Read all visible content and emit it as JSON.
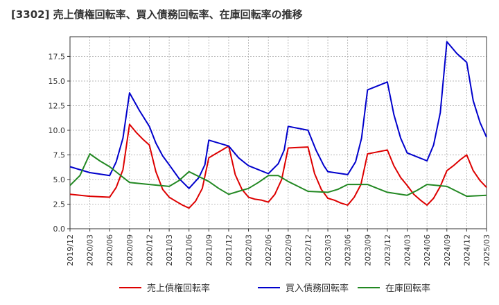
{
  "chart_data": {
    "type": "line",
    "title": "[3302]  売上債権回転率、買入債務回転率、在庫回転率の推移",
    "xlabel": "",
    "ylabel": "",
    "ylim": [
      0,
      19.5
    ],
    "yticks": [
      0.0,
      2.5,
      5.0,
      7.5,
      10.0,
      12.5,
      15.0,
      17.5
    ],
    "ytick_labels": [
      "0.0",
      "2.5",
      "5.0",
      "7.5",
      "10.0",
      "12.5",
      "15.0",
      "17.5"
    ],
    "xtick_labels": [
      "2019/12",
      "2020/03",
      "2020/06",
      "2020/09",
      "2020/12",
      "2021/03",
      "2021/06",
      "2021/09",
      "2021/12",
      "2022/03",
      "2022/06",
      "2022/09",
      "2022/12",
      "2023/03",
      "2023/06",
      "2023/09",
      "2023/12",
      "2024/03",
      "2024/06",
      "2024/09",
      "2024/12",
      "2025/03"
    ],
    "grid": true,
    "legend_position": "bottom",
    "series": [
      {
        "name": "売上債権回転率",
        "color": "#dd0000",
        "points": [
          [
            0,
            3.5
          ],
          [
            1,
            3.3
          ],
          [
            2,
            3.2
          ],
          [
            2.33,
            4.2
          ],
          [
            2.67,
            6.0
          ],
          [
            3,
            10.6
          ],
          [
            3.33,
            9.8
          ],
          [
            3.67,
            9.1
          ],
          [
            4,
            8.5
          ],
          [
            4.33,
            5.8
          ],
          [
            4.67,
            4.0
          ],
          [
            5,
            3.2
          ],
          [
            5.33,
            2.8
          ],
          [
            5.67,
            2.4
          ],
          [
            6,
            2.1
          ],
          [
            6.33,
            2.8
          ],
          [
            6.67,
            4.1
          ],
          [
            7,
            7.2
          ],
          [
            7.33,
            7.6
          ],
          [
            7.67,
            8.0
          ],
          [
            8,
            8.4
          ],
          [
            8.33,
            5.5
          ],
          [
            8.67,
            4.0
          ],
          [
            9,
            3.2
          ],
          [
            9.33,
            3.0
          ],
          [
            9.67,
            2.9
          ],
          [
            10,
            2.7
          ],
          [
            10.33,
            3.5
          ],
          [
            10.67,
            5.0
          ],
          [
            11,
            8.2
          ],
          [
            11.5,
            8.25
          ],
          [
            12,
            8.3
          ],
          [
            12.33,
            5.6
          ],
          [
            12.67,
            4.0
          ],
          [
            13,
            3.1
          ],
          [
            13.33,
            2.9
          ],
          [
            13.67,
            2.6
          ],
          [
            14,
            2.4
          ],
          [
            14.33,
            3.2
          ],
          [
            14.67,
            4.5
          ],
          [
            15,
            7.6
          ],
          [
            15.5,
            7.8
          ],
          [
            16,
            8.0
          ],
          [
            16.33,
            6.4
          ],
          [
            16.67,
            5.2
          ],
          [
            17,
            4.4
          ],
          [
            17.33,
            3.5
          ],
          [
            17.67,
            2.9
          ],
          [
            18,
            2.4
          ],
          [
            18.33,
            3.1
          ],
          [
            18.67,
            4.3
          ],
          [
            19,
            5.9
          ],
          [
            19.33,
            6.4
          ],
          [
            19.67,
            7.0
          ],
          [
            20,
            7.5
          ],
          [
            20.33,
            5.9
          ],
          [
            20.67,
            4.9
          ],
          [
            21,
            4.2
          ]
        ]
      },
      {
        "name": "買入債務回転率",
        "color": "#0000cc",
        "points": [
          [
            0,
            6.3
          ],
          [
            1,
            5.7
          ],
          [
            2,
            5.4
          ],
          [
            2.33,
            6.8
          ],
          [
            2.67,
            9.2
          ],
          [
            3,
            13.8
          ],
          [
            3.5,
            12.0
          ],
          [
            4,
            10.4
          ],
          [
            4.33,
            8.7
          ],
          [
            4.67,
            7.4
          ],
          [
            5,
            6.5
          ],
          [
            5.5,
            5.1
          ],
          [
            6,
            4.1
          ],
          [
            6.5,
            5.2
          ],
          [
            6.8,
            6.5
          ],
          [
            7,
            9.0
          ],
          [
            8,
            8.4
          ],
          [
            8.5,
            7.2
          ],
          [
            9,
            6.4
          ],
          [
            10,
            5.6
          ],
          [
            10.5,
            6.6
          ],
          [
            10.8,
            8.0
          ],
          [
            11,
            10.4
          ],
          [
            12,
            10.0
          ],
          [
            12.4,
            8.0
          ],
          [
            12.8,
            6.4
          ],
          [
            13,
            5.8
          ],
          [
            14,
            5.5
          ],
          [
            14.4,
            6.8
          ],
          [
            14.7,
            9.2
          ],
          [
            15,
            14.1
          ],
          [
            16,
            14.9
          ],
          [
            16.33,
            11.6
          ],
          [
            16.67,
            9.2
          ],
          [
            17,
            7.7
          ],
          [
            17.5,
            7.3
          ],
          [
            18,
            6.9
          ],
          [
            18.33,
            8.5
          ],
          [
            18.67,
            11.8
          ],
          [
            19,
            19.0
          ],
          [
            19.5,
            17.8
          ],
          [
            20,
            16.9
          ],
          [
            20.33,
            13.0
          ],
          [
            20.67,
            10.8
          ],
          [
            21,
            9.3
          ]
        ]
      },
      {
        "name": "在庫回転率",
        "color": "#228822",
        "points": [
          [
            0,
            4.4
          ],
          [
            0.5,
            5.4
          ],
          [
            1,
            7.6
          ],
          [
            1.5,
            6.9
          ],
          [
            2,
            6.3
          ],
          [
            2.5,
            5.5
          ],
          [
            3,
            4.7
          ],
          [
            4,
            4.5
          ],
          [
            5,
            4.3
          ],
          [
            5.5,
            4.9
          ],
          [
            6,
            5.8
          ],
          [
            6.5,
            5.3
          ],
          [
            7,
            4.8
          ],
          [
            7.5,
            4.1
          ],
          [
            8,
            3.5
          ],
          [
            8.5,
            3.8
          ],
          [
            9,
            4.1
          ],
          [
            9.5,
            4.7
          ],
          [
            10,
            5.4
          ],
          [
            10.5,
            5.4
          ],
          [
            11,
            4.8
          ],
          [
            11.5,
            4.3
          ],
          [
            12,
            3.8
          ],
          [
            13,
            3.7
          ],
          [
            13.5,
            4.0
          ],
          [
            14,
            4.5
          ],
          [
            15,
            4.5
          ],
          [
            15.5,
            4.1
          ],
          [
            16,
            3.7
          ],
          [
            17,
            3.4
          ],
          [
            17.5,
            3.9
          ],
          [
            18,
            4.5
          ],
          [
            19,
            4.3
          ],
          [
            19.5,
            3.8
          ],
          [
            20,
            3.3
          ],
          [
            21,
            3.4
          ]
        ]
      }
    ]
  }
}
